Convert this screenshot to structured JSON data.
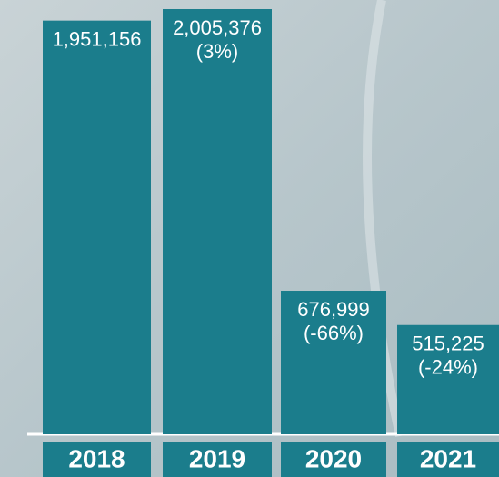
{
  "chart_data": {
    "type": "bar",
    "categories": [
      "2018",
      "2019",
      "2020",
      "2021"
    ],
    "values": [
      1951156,
      2005376,
      676999,
      515225
    ],
    "value_labels": [
      "1,951,156",
      "2,005,376",
      "676,999",
      "515,225"
    ],
    "changes": [
      null,
      3,
      -66,
      -24
    ],
    "change_labels": [
      null,
      "(3%)",
      "(-66%)",
      "(-24%)"
    ],
    "color": "#1b7d8c"
  }
}
